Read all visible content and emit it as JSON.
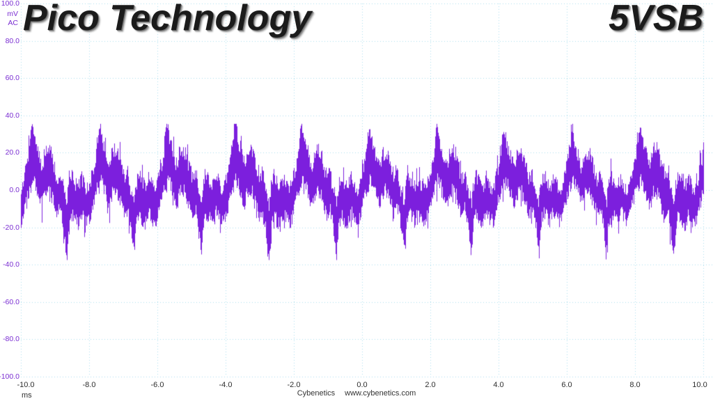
{
  "header": {
    "logo_text": "Pico Technology",
    "channel_label": "5VSB"
  },
  "y_axis": {
    "tick_labels": [
      "100.0",
      "80.0",
      "60.0",
      "40.0",
      "20.0",
      "0.0",
      "-20.0",
      "-40.0",
      "-60.0",
      "-80.0",
      "-100.0"
    ],
    "unit_line1": "mV",
    "unit_line2": "AC"
  },
  "x_axis": {
    "tick_labels": [
      "-10.0",
      "-8.0",
      "-6.0",
      "-4.0",
      "-2.0",
      "0.0",
      "2.0",
      "4.0",
      "6.0",
      "8.0",
      "10.0"
    ],
    "unit": "ms"
  },
  "footer": {
    "brand": "Cybenetics",
    "url": "www.cybenetics.com"
  },
  "colors": {
    "background": "#ffffff",
    "grid": "#aaddec",
    "trace": "#7c1fdd",
    "y_label_text": "#7a2dd2",
    "x_label_text": "#2e2e2e",
    "logo_text": "#1b1b1b",
    "footer_text": "#333333"
  },
  "chart_data": {
    "type": "line",
    "title": "5VSB ripple waveform (oscilloscope trace)",
    "series_name": "5VSB",
    "xlabel": "ms",
    "ylabel": "mV AC",
    "xlim": [
      -10,
      10
    ],
    "ylim": [
      -100,
      100
    ],
    "x_tick_step_ms": 2,
    "y_tick_step_mv": 20,
    "grid": true,
    "legend": false,
    "period_ms": 1.977,
    "first_peak_ms": -9.694,
    "peak_mv": 34,
    "trough_mv": -37,
    "typical_band_mv": [
      -20,
      22
    ],
    "mean_mv": 0,
    "envelope_cycle": [
      [
        0.0,
        2,
        31
      ],
      [
        0.02,
        6,
        33
      ],
      [
        0.05,
        4,
        26
      ],
      [
        0.09,
        0,
        22
      ],
      [
        0.13,
        -5,
        16
      ],
      [
        0.16,
        -8,
        12
      ],
      [
        0.19,
        -2,
        20
      ],
      [
        0.24,
        0,
        22
      ],
      [
        0.29,
        -2,
        20
      ],
      [
        0.33,
        -8,
        13
      ],
      [
        0.38,
        -14,
        6
      ],
      [
        0.42,
        -10,
        10
      ],
      [
        0.46,
        -16,
        2
      ],
      [
        0.49,
        -24,
        -2
      ],
      [
        0.52,
        -33,
        -8
      ],
      [
        0.55,
        -20,
        2
      ],
      [
        0.59,
        -13,
        8
      ],
      [
        0.64,
        -16,
        4
      ],
      [
        0.69,
        -18,
        2
      ],
      [
        0.74,
        -12,
        7
      ],
      [
        0.79,
        -16,
        2
      ],
      [
        0.84,
        -18,
        0
      ],
      [
        0.88,
        -12,
        6
      ],
      [
        0.92,
        -6,
        12
      ],
      [
        0.95,
        -2,
        18
      ],
      [
        0.98,
        2,
        26
      ],
      [
        1.0,
        2,
        31
      ]
    ],
    "noise_mv": 4,
    "noise_seed": 1337
  }
}
